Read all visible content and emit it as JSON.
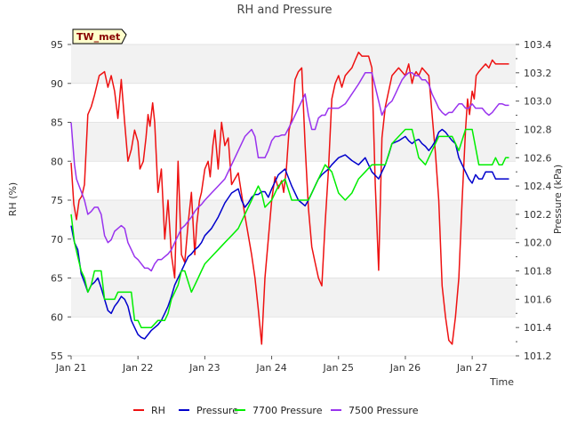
{
  "chart_data": {
    "type": "line",
    "title": "RH and Pressure",
    "station_label": "TW_met",
    "xlabel": "Time",
    "ylabel_left": "RH (%)",
    "ylabel_right": "Pressure (kPa)",
    "x_ticks": [
      "Jan 21",
      "Jan 22",
      "Jan 23",
      "Jan 24",
      "Jan 25",
      "Jan 26",
      "Jan 27"
    ],
    "xlim": [
      0,
      6.65
    ],
    "ylim_left": [
      55,
      95
    ],
    "ylim_right": [
      101.2,
      103.4
    ],
    "yticks_left": [
      "55",
      "60",
      "65",
      "70",
      "75",
      "80",
      "85",
      "90",
      "95"
    ],
    "yticks_right": [
      "101.2",
      "101.4",
      "101.6",
      "101.8",
      "102.0",
      "102.2",
      "102.4",
      "102.6",
      "102.8",
      "103.0",
      "103.2",
      "103.4"
    ],
    "grid": "horizontal bands",
    "legend_position": "bottom",
    "series": [
      {
        "name": "RH",
        "axis": "left",
        "color": "#ee1111",
        "x": [
          0.0,
          0.04,
          0.08,
          0.12,
          0.16,
          0.2,
          0.25,
          0.3,
          0.35,
          0.42,
          0.5,
          0.55,
          0.6,
          0.65,
          0.7,
          0.75,
          0.8,
          0.85,
          0.9,
          0.95,
          1.0,
          1.03,
          1.08,
          1.12,
          1.15,
          1.18,
          1.22,
          1.25,
          1.3,
          1.35,
          1.4,
          1.45,
          1.5,
          1.55,
          1.6,
          1.65,
          1.7,
          1.75,
          1.8,
          1.85,
          1.88,
          1.92,
          1.95,
          2.0,
          2.05,
          2.08,
          2.12,
          2.15,
          2.2,
          2.25,
          2.3,
          2.35,
          2.4,
          2.5,
          2.6,
          2.7,
          2.75,
          2.8,
          2.85,
          2.9,
          2.95,
          3.0,
          3.05,
          3.1,
          3.15,
          3.18,
          3.22,
          3.26,
          3.3,
          3.35,
          3.4,
          3.45,
          3.5,
          3.55,
          3.6,
          3.65,
          3.7,
          3.75,
          3.8,
          3.85,
          3.9,
          3.95,
          4.0,
          4.05,
          4.1,
          4.15,
          4.2,
          4.25,
          4.3,
          4.35,
          4.4,
          4.45,
          4.5,
          4.55,
          4.6,
          4.65,
          4.7,
          4.8,
          4.9,
          5.0,
          5.05,
          5.1,
          5.13,
          5.16,
          5.2,
          5.25,
          5.3,
          5.35,
          5.4,
          5.45,
          5.5,
          5.55,
          5.6,
          5.65,
          5.7,
          5.75,
          5.8,
          5.85,
          5.9,
          5.93,
          5.96,
          6.0,
          6.03,
          6.06,
          6.1,
          6.15,
          6.2,
          6.25,
          6.3,
          6.35,
          6.4,
          6.45,
          6.5,
          6.55
        ],
        "y": [
          79.8,
          74.5,
          72.5,
          75.0,
          75.5,
          77.0,
          86.0,
          87.0,
          88.5,
          91.0,
          91.5,
          89.5,
          91.0,
          89.0,
          85.5,
          90.5,
          85.0,
          80.0,
          81.5,
          84.0,
          82.5,
          79.0,
          80.0,
          83.0,
          86.0,
          84.5,
          87.5,
          85.0,
          76.0,
          79.0,
          70.0,
          75.0,
          68.0,
          65.0,
          80.0,
          68.0,
          67.0,
          72.0,
          76.0,
          68.0,
          72.0,
          75.0,
          76.0,
          79.0,
          80.0,
          78.0,
          82.0,
          84.0,
          79.0,
          85.0,
          82.0,
          83.0,
          77.0,
          78.5,
          73.0,
          68.0,
          65.0,
          61.0,
          56.5,
          65.0,
          70.0,
          75.0,
          78.0,
          76.5,
          77.5,
          76.0,
          79.0,
          84.0,
          85.5,
          90.5,
          91.5,
          92.0,
          82.0,
          74.0,
          69.0,
          67.0,
          65.0,
          64.0,
          72.0,
          79.0,
          88.0,
          90.0,
          91.0,
          89.5,
          91.0,
          91.5,
          92.0,
          93.0,
          94.0,
          93.5,
          93.5,
          93.5,
          92.0,
          77.0,
          66.0,
          83.0,
          87.0,
          91.0,
          92.0,
          91.0,
          92.5,
          90.0,
          91.0,
          91.5,
          91.0,
          92.0,
          91.5,
          91.0,
          86.0,
          81.0,
          75.0,
          64.0,
          60.0,
          57.0,
          56.5,
          60.0,
          65.0,
          75.0,
          84.0,
          88.0,
          86.0,
          89.0,
          88.0,
          91.0,
          91.5,
          92.0,
          92.5,
          92.0,
          93.0,
          92.5,
          92.5,
          92.5,
          92.5,
          92.5
        ],
        "y_note": ""
      },
      {
        "name": "Pressure",
        "axis": "right",
        "color": "#0000cc",
        "x": [
          0.0,
          0.05,
          0.1,
          0.15,
          0.2,
          0.25,
          0.3,
          0.35,
          0.4,
          0.45,
          0.5,
          0.55,
          0.6,
          0.65,
          0.7,
          0.75,
          0.8,
          0.85,
          0.9,
          0.95,
          1.0,
          1.05,
          1.1,
          1.15,
          1.2,
          1.25,
          1.3,
          1.35,
          1.4,
          1.45,
          1.5,
          1.55,
          1.6,
          1.65,
          1.7,
          1.75,
          1.8,
          1.85,
          1.9,
          1.95,
          2.0,
          2.1,
          2.2,
          2.3,
          2.4,
          2.5,
          2.55,
          2.6,
          2.65,
          2.7,
          2.75,
          2.8,
          2.85,
          2.9,
          2.95,
          3.0,
          3.1,
          3.2,
          3.3,
          3.4,
          3.5,
          3.55,
          3.6,
          3.65,
          3.7,
          3.75,
          3.8,
          3.85,
          3.9,
          4.0,
          4.1,
          4.2,
          4.3,
          4.4,
          4.5,
          4.6,
          4.65,
          4.7,
          4.75,
          4.8,
          4.9,
          5.0,
          5.05,
          5.1,
          5.15,
          5.2,
          5.25,
          5.3,
          5.35,
          5.4,
          5.45,
          5.5,
          5.55,
          5.6,
          5.65,
          5.7,
          5.75,
          5.8,
          5.85,
          5.9,
          5.95,
          6.0,
          6.05,
          6.1,
          6.15,
          6.2,
          6.25,
          6.3,
          6.35,
          6.4,
          6.45,
          6.5,
          6.55
        ],
        "y": [
          102.12,
          102.0,
          101.95,
          101.78,
          101.72,
          101.65,
          101.7,
          101.72,
          101.75,
          101.68,
          101.6,
          101.52,
          101.5,
          101.55,
          101.58,
          101.62,
          101.6,
          101.55,
          101.45,
          101.4,
          101.35,
          101.33,
          101.32,
          101.35,
          101.38,
          101.4,
          101.42,
          101.45,
          101.5,
          101.55,
          101.62,
          101.7,
          101.75,
          101.8,
          101.85,
          101.9,
          101.92,
          101.95,
          101.97,
          102.0,
          102.05,
          102.1,
          102.18,
          102.28,
          102.35,
          102.38,
          102.3,
          102.25,
          102.28,
          102.32,
          102.34,
          102.34,
          102.36,
          102.36,
          102.32,
          102.38,
          102.48,
          102.52,
          102.4,
          102.3,
          102.26,
          102.3,
          102.35,
          102.4,
          102.45,
          102.48,
          102.5,
          102.52,
          102.55,
          102.6,
          102.62,
          102.58,
          102.55,
          102.6,
          102.5,
          102.45,
          102.5,
          102.55,
          102.62,
          102.7,
          102.72,
          102.75,
          102.72,
          102.7,
          102.72,
          102.73,
          102.7,
          102.68,
          102.65,
          102.68,
          102.72,
          102.78,
          102.8,
          102.78,
          102.75,
          102.72,
          102.7,
          102.6,
          102.55,
          102.5,
          102.45,
          102.42,
          102.48,
          102.45,
          102.45,
          102.5,
          102.5,
          102.5,
          102.45,
          102.45,
          102.45,
          102.45,
          102.45
        ],
        "y_note": "kPa"
      },
      {
        "name": "7700 Pressure",
        "axis": "right",
        "color": "#00ee00",
        "x": [
          0.0,
          0.05,
          0.1,
          0.15,
          0.2,
          0.25,
          0.3,
          0.35,
          0.4,
          0.45,
          0.5,
          0.6,
          0.65,
          0.7,
          0.75,
          0.8,
          0.85,
          0.9,
          0.95,
          1.0,
          1.05,
          1.1,
          1.15,
          1.2,
          1.3,
          1.4,
          1.45,
          1.5,
          1.6,
          1.65,
          1.7,
          1.8,
          1.85,
          1.9,
          1.95,
          2.0,
          2.1,
          2.2,
          2.3,
          2.4,
          2.5,
          2.6,
          2.7,
          2.75,
          2.8,
          2.85,
          2.9,
          3.0,
          3.1,
          3.2,
          3.3,
          3.4,
          3.5,
          3.55,
          3.6,
          3.7,
          3.8,
          3.9,
          4.0,
          4.1,
          4.2,
          4.3,
          4.4,
          4.5,
          4.6,
          4.65,
          4.7,
          4.8,
          4.9,
          5.0,
          5.1,
          5.2,
          5.3,
          5.4,
          5.5,
          5.55,
          5.6,
          5.65,
          5.7,
          5.8,
          5.9,
          6.0,
          6.1,
          6.2,
          6.3,
          6.35,
          6.4,
          6.45,
          6.5,
          6.55
        ],
        "y": [
          102.2,
          102.0,
          101.9,
          101.8,
          101.75,
          101.65,
          101.7,
          101.8,
          101.8,
          101.8,
          101.6,
          101.6,
          101.6,
          101.65,
          101.65,
          101.65,
          101.65,
          101.65,
          101.45,
          101.45,
          101.4,
          101.4,
          101.4,
          101.4,
          101.45,
          101.45,
          101.5,
          101.6,
          101.7,
          101.8,
          101.8,
          101.65,
          101.7,
          101.75,
          101.8,
          101.85,
          101.9,
          101.95,
          102.0,
          102.05,
          102.1,
          102.2,
          102.3,
          102.35,
          102.4,
          102.35,
          102.25,
          102.3,
          102.4,
          102.45,
          102.3,
          102.3,
          102.3,
          102.3,
          102.35,
          102.45,
          102.55,
          102.5,
          102.35,
          102.3,
          102.35,
          102.45,
          102.5,
          102.55,
          102.55,
          102.55,
          102.55,
          102.7,
          102.75,
          102.8,
          102.8,
          102.6,
          102.55,
          102.65,
          102.75,
          102.75,
          102.75,
          102.75,
          102.75,
          102.65,
          102.8,
          102.8,
          102.55,
          102.55,
          102.55,
          102.6,
          102.55,
          102.55,
          102.6,
          102.6
        ],
        "y_note": "kPa"
      },
      {
        "name": "7500 Pressure",
        "axis": "right",
        "color": "#9933ee",
        "x": [
          0.0,
          0.05,
          0.08,
          0.12,
          0.16,
          0.2,
          0.25,
          0.3,
          0.35,
          0.4,
          0.45,
          0.5,
          0.55,
          0.6,
          0.65,
          0.7,
          0.75,
          0.8,
          0.85,
          0.9,
          0.95,
          1.0,
          1.05,
          1.1,
          1.15,
          1.2,
          1.25,
          1.3,
          1.35,
          1.4,
          1.45,
          1.5,
          1.55,
          1.6,
          1.65,
          1.7,
          1.75,
          1.8,
          1.85,
          1.9,
          1.95,
          2.0,
          2.1,
          2.2,
          2.3,
          2.4,
          2.5,
          2.6,
          2.7,
          2.75,
          2.8,
          2.9,
          2.95,
          3.0,
          3.05,
          3.1,
          3.15,
          3.2,
          3.3,
          3.4,
          3.5,
          3.55,
          3.6,
          3.65,
          3.7,
          3.75,
          3.8,
          3.85,
          3.9,
          4.0,
          4.1,
          4.2,
          4.3,
          4.4,
          4.5,
          4.6,
          4.65,
          4.7,
          4.75,
          4.8,
          4.85,
          4.9,
          4.95,
          5.0,
          5.05,
          5.1,
          5.15,
          5.2,
          5.25,
          5.3,
          5.35,
          5.4,
          5.45,
          5.5,
          5.55,
          5.6,
          5.65,
          5.7,
          5.75,
          5.8,
          5.85,
          5.9,
          5.95,
          6.0,
          6.05,
          6.1,
          6.15,
          6.2,
          6.25,
          6.3,
          6.35,
          6.4,
          6.45,
          6.5,
          6.55
        ],
        "y": [
          102.85,
          102.55,
          102.45,
          102.4,
          102.35,
          102.3,
          102.2,
          102.22,
          102.25,
          102.25,
          102.2,
          102.05,
          102.0,
          102.02,
          102.08,
          102.1,
          102.12,
          102.1,
          102.0,
          101.95,
          101.9,
          101.88,
          101.85,
          101.82,
          101.82,
          101.8,
          101.85,
          101.88,
          101.88,
          101.9,
          101.92,
          101.95,
          102.0,
          102.05,
          102.1,
          102.12,
          102.15,
          102.18,
          102.22,
          102.25,
          102.27,
          102.3,
          102.35,
          102.4,
          102.45,
          102.55,
          102.65,
          102.75,
          102.8,
          102.75,
          102.6,
          102.6,
          102.65,
          102.72,
          102.75,
          102.75,
          102.76,
          102.76,
          102.85,
          102.95,
          103.05,
          102.9,
          102.8,
          102.8,
          102.88,
          102.9,
          102.9,
          102.95,
          102.95,
          102.95,
          102.98,
          103.05,
          103.12,
          103.2,
          103.2,
          103.0,
          102.9,
          102.95,
          102.98,
          103.0,
          103.05,
          103.1,
          103.15,
          103.18,
          103.2,
          103.2,
          103.18,
          103.18,
          103.15,
          103.15,
          103.12,
          103.05,
          103.0,
          102.95,
          102.92,
          102.9,
          102.92,
          102.92,
          102.95,
          102.98,
          102.98,
          102.95,
          102.95,
          102.98,
          102.95,
          102.95,
          102.95,
          102.92,
          102.9,
          102.92,
          102.95,
          102.98,
          102.98,
          102.97,
          102.97
        ]
      }
    ]
  }
}
